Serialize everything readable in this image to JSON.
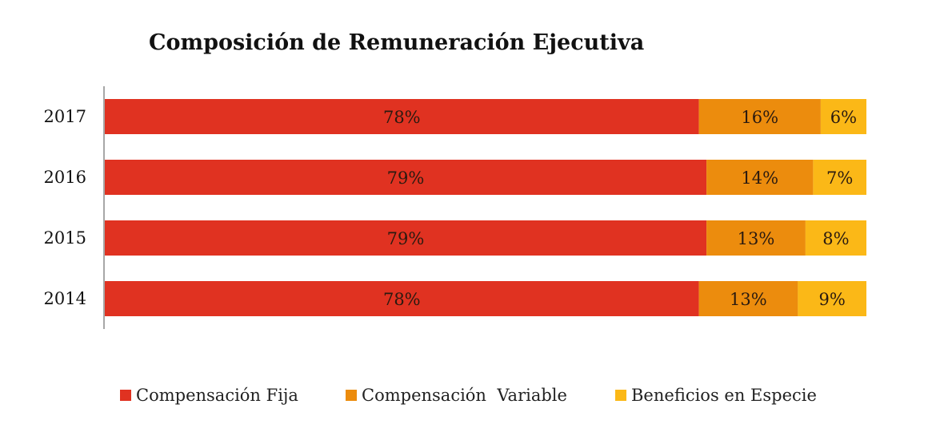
{
  "chart_data": {
    "type": "bar",
    "orientation": "horizontal",
    "stacked": true,
    "title": "Composición de Remuneración Ejecutiva",
    "categories": [
      "2017",
      "2016",
      "2015",
      "2014"
    ],
    "series": [
      {
        "name": "Compensación Fija",
        "color": "#e03221",
        "values": [
          78,
          79,
          79,
          78
        ]
      },
      {
        "name": "Compensación  Variable",
        "color": "#ec8c0d",
        "values": [
          16,
          14,
          13,
          13
        ]
      },
      {
        "name": "Beneficios en Especie",
        "color": "#fbb817",
        "values": [
          6,
          7,
          8,
          9
        ]
      }
    ],
    "value_suffix": "%",
    "xlim": [
      0,
      100
    ],
    "grid": false,
    "legend_position": "bottom"
  }
}
